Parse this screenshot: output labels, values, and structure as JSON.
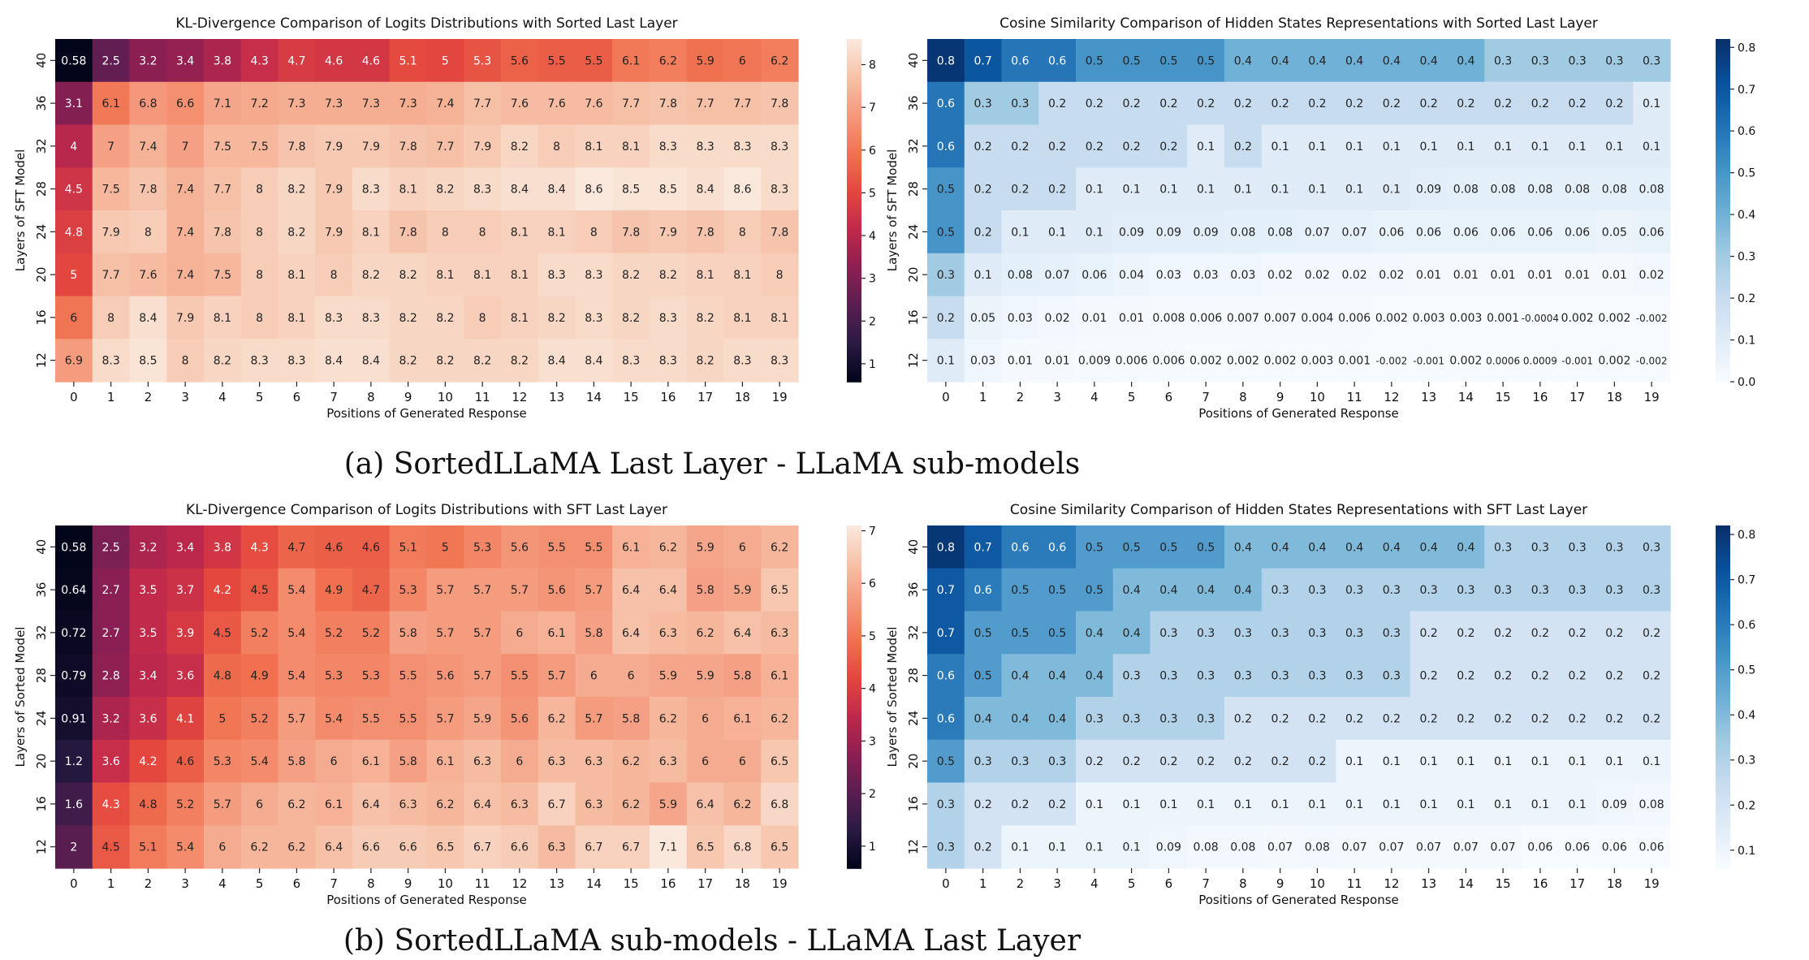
{
  "captions": [
    "(a) SortedLLaMA Last Layer - LLaMA sub-models",
    "(b) SortedLLaMA sub-models - LLaMA Last Layer"
  ],
  "chart_data": [
    {
      "type": "heatmap",
      "title": "KL-Divergence Comparison of Logits Distributions with Sorted Last Layer",
      "xlabel": "Positions of Generated Response",
      "ylabel": "Layers of SFT Model",
      "x": [
        0,
        1,
        2,
        3,
        4,
        5,
        6,
        7,
        8,
        9,
        10,
        11,
        12,
        13,
        14,
        15,
        16,
        17,
        18,
        19
      ],
      "y": [
        40,
        36,
        32,
        28,
        24,
        20,
        16,
        12
      ],
      "colormap": "rocket",
      "vmin": 0.58,
      "vmax": 8.6,
      "colorbar_ticks": [
        1,
        2,
        3,
        4,
        5,
        6,
        7,
        8
      ],
      "values": [
        [
          "0.58",
          "2.5",
          "3.2",
          "3.4",
          "3.8",
          "4.3",
          "4.7",
          "4.6",
          "4.6",
          "5.1",
          "5",
          "5.3",
          "5.6",
          "5.5",
          "5.5",
          "6.1",
          "6.2",
          "5.9",
          "6",
          "6.2"
        ],
        [
          "3.1",
          "6.1",
          "6.8",
          "6.6",
          "7.1",
          "7.2",
          "7.3",
          "7.3",
          "7.3",
          "7.3",
          "7.4",
          "7.7",
          "7.6",
          "7.6",
          "7.6",
          "7.7",
          "7.8",
          "7.7",
          "7.7",
          "7.8"
        ],
        [
          "4",
          "7",
          "7.4",
          "7",
          "7.5",
          "7.5",
          "7.8",
          "7.9",
          "7.9",
          "7.8",
          "7.7",
          "7.9",
          "8.2",
          "8",
          "8.1",
          "8.1",
          "8.3",
          "8.3",
          "8.3",
          "8.3"
        ],
        [
          "4.5",
          "7.5",
          "7.8",
          "7.4",
          "7.7",
          "8",
          "8.2",
          "7.9",
          "8.3",
          "8.1",
          "8.2",
          "8.3",
          "8.4",
          "8.4",
          "8.6",
          "8.5",
          "8.5",
          "8.4",
          "8.6",
          "8.3"
        ],
        [
          "4.8",
          "7.9",
          "8",
          "7.4",
          "7.8",
          "8",
          "8.2",
          "7.9",
          "8.1",
          "7.8",
          "8",
          "8",
          "8.1",
          "8.1",
          "8",
          "7.8",
          "7.9",
          "7.8",
          "8",
          "7.8"
        ],
        [
          "5",
          "7.7",
          "7.6",
          "7.4",
          "7.5",
          "8",
          "8.1",
          "8",
          "8.2",
          "8.2",
          "8.1",
          "8.1",
          "8.1",
          "8.3",
          "8.3",
          "8.2",
          "8.2",
          "8.1",
          "8.1",
          "8"
        ],
        [
          "6",
          "8",
          "8.4",
          "7.9",
          "8.1",
          "8",
          "8.1",
          "8.3",
          "8.3",
          "8.2",
          "8.2",
          "8",
          "8.1",
          "8.2",
          "8.3",
          "8.2",
          "8.3",
          "8.2",
          "8.1",
          "8.1"
        ],
        [
          "6.9",
          "8.3",
          "8.5",
          "8",
          "8.2",
          "8.3",
          "8.3",
          "8.4",
          "8.4",
          "8.2",
          "8.2",
          "8.2",
          "8.2",
          "8.4",
          "8.4",
          "8.3",
          "8.3",
          "8.2",
          "8.3",
          "8.3"
        ]
      ]
    },
    {
      "type": "heatmap",
      "title": "Cosine Similarity Comparison of Hidden States Representations with Sorted Last Layer",
      "xlabel": "Positions of Generated Response",
      "ylabel": "Layers of SFT Model",
      "x": [
        0,
        1,
        2,
        3,
        4,
        5,
        6,
        7,
        8,
        9,
        10,
        11,
        12,
        13,
        14,
        15,
        16,
        17,
        18,
        19
      ],
      "y": [
        40,
        36,
        32,
        28,
        24,
        20,
        16,
        12
      ],
      "colormap": "Blues",
      "vmin": 0.0,
      "vmax": 0.82,
      "colorbar_ticks": [
        "0.0",
        "0.1",
        "0.2",
        "0.3",
        "0.4",
        "0.5",
        "0.6",
        "0.7",
        "0.8"
      ],
      "values": [
        [
          "0.8",
          "0.7",
          "0.6",
          "0.6",
          "0.5",
          "0.5",
          "0.5",
          "0.5",
          "0.4",
          "0.4",
          "0.4",
          "0.4",
          "0.4",
          "0.4",
          "0.4",
          "0.3",
          "0.3",
          "0.3",
          "0.3",
          "0.3"
        ],
        [
          "0.6",
          "0.3",
          "0.3",
          "0.2",
          "0.2",
          "0.2",
          "0.2",
          "0.2",
          "0.2",
          "0.2",
          "0.2",
          "0.2",
          "0.2",
          "0.2",
          "0.2",
          "0.2",
          "0.2",
          "0.2",
          "0.2",
          "0.1"
        ],
        [
          "0.6",
          "0.2",
          "0.2",
          "0.2",
          "0.2",
          "0.2",
          "0.2",
          "0.1",
          "0.2",
          "0.1",
          "0.1",
          "0.1",
          "0.1",
          "0.1",
          "0.1",
          "0.1",
          "0.1",
          "0.1",
          "0.1",
          "0.1"
        ],
        [
          "0.5",
          "0.2",
          "0.2",
          "0.2",
          "0.1",
          "0.1",
          "0.1",
          "0.1",
          "0.1",
          "0.1",
          "0.1",
          "0.1",
          "0.1",
          "0.09",
          "0.08",
          "0.08",
          "0.08",
          "0.08",
          "0.08",
          "0.08"
        ],
        [
          "0.5",
          "0.2",
          "0.1",
          "0.1",
          "0.1",
          "0.09",
          "0.09",
          "0.09",
          "0.08",
          "0.08",
          "0.07",
          "0.07",
          "0.06",
          "0.06",
          "0.06",
          "0.06",
          "0.06",
          "0.06",
          "0.05",
          "0.06"
        ],
        [
          "0.3",
          "0.1",
          "0.08",
          "0.07",
          "0.06",
          "0.04",
          "0.03",
          "0.03",
          "0.03",
          "0.02",
          "0.02",
          "0.02",
          "0.02",
          "0.01",
          "0.01",
          "0.01",
          "0.01",
          "0.01",
          "0.01",
          "0.02"
        ],
        [
          "0.2",
          "0.05",
          "0.03",
          "0.02",
          "0.01",
          "0.01",
          "0.008",
          "0.006",
          "0.007",
          "0.007",
          "0.004",
          "0.006",
          "0.002",
          "0.003",
          "0.003",
          "0.001",
          "-0.0004",
          "0.002",
          "0.002",
          "-0.002"
        ],
        [
          "0.1",
          "0.03",
          "0.01",
          "0.01",
          "0.009",
          "0.006",
          "0.006",
          "0.002",
          "0.002",
          "0.002",
          "0.003",
          "0.001",
          "-0.002",
          "-0.001",
          "0.002",
          "0.0006",
          "0.0009",
          "-0.001",
          "0.002",
          "-0.002"
        ]
      ]
    },
    {
      "type": "heatmap",
      "title": "KL-Divergence Comparison of Logits Distributions with SFT Last Layer",
      "xlabel": "Positions of Generated Response",
      "ylabel": "Layers of Sorted Model",
      "x": [
        0,
        1,
        2,
        3,
        4,
        5,
        6,
        7,
        8,
        9,
        10,
        11,
        12,
        13,
        14,
        15,
        16,
        17,
        18,
        19
      ],
      "y": [
        40,
        36,
        32,
        28,
        24,
        20,
        16,
        12
      ],
      "colormap": "rocket",
      "vmin": 0.58,
      "vmax": 7.1,
      "colorbar_ticks": [
        1,
        2,
        3,
        4,
        5,
        6,
        7
      ],
      "values": [
        [
          "0.58",
          "2.5",
          "3.2",
          "3.4",
          "3.8",
          "4.3",
          "4.7",
          "4.6",
          "4.6",
          "5.1",
          "5",
          "5.3",
          "5.6",
          "5.5",
          "5.5",
          "6.1",
          "6.2",
          "5.9",
          "6",
          "6.2"
        ],
        [
          "0.64",
          "2.7",
          "3.5",
          "3.7",
          "4.2",
          "4.5",
          "5.4",
          "4.9",
          "4.7",
          "5.3",
          "5.7",
          "5.7",
          "5.7",
          "5.6",
          "5.7",
          "6.4",
          "6.4",
          "5.8",
          "5.9",
          "6.5"
        ],
        [
          "0.72",
          "2.7",
          "3.5",
          "3.9",
          "4.5",
          "5.2",
          "5.4",
          "5.2",
          "5.2",
          "5.8",
          "5.7",
          "5.7",
          "6",
          "6.1",
          "5.8",
          "6.4",
          "6.3",
          "6.2",
          "6.4",
          "6.3"
        ],
        [
          "0.79",
          "2.8",
          "3.4",
          "3.6",
          "4.8",
          "4.9",
          "5.4",
          "5.3",
          "5.3",
          "5.5",
          "5.6",
          "5.7",
          "5.5",
          "5.7",
          "6",
          "6",
          "5.9",
          "5.9",
          "5.8",
          "6.1"
        ],
        [
          "0.91",
          "3.2",
          "3.6",
          "4.1",
          "5",
          "5.2",
          "5.7",
          "5.4",
          "5.5",
          "5.5",
          "5.7",
          "5.9",
          "5.6",
          "6.2",
          "5.7",
          "5.8",
          "6.2",
          "6",
          "6.1",
          "6.2"
        ],
        [
          "1.2",
          "3.6",
          "4.2",
          "4.6",
          "5.3",
          "5.4",
          "5.8",
          "6",
          "6.1",
          "5.8",
          "6.1",
          "6.3",
          "6",
          "6.3",
          "6.3",
          "6.2",
          "6.3",
          "6",
          "6",
          "6.5"
        ],
        [
          "1.6",
          "4.3",
          "4.8",
          "5.2",
          "5.7",
          "6",
          "6.2",
          "6.1",
          "6.4",
          "6.3",
          "6.2",
          "6.4",
          "6.3",
          "6.7",
          "6.3",
          "6.2",
          "5.9",
          "6.4",
          "6.2",
          "6.8"
        ],
        [
          "2",
          "4.5",
          "5.1",
          "5.4",
          "6",
          "6.2",
          "6.2",
          "6.4",
          "6.6",
          "6.6",
          "6.5",
          "6.7",
          "6.6",
          "6.3",
          "6.7",
          "6.7",
          "7.1",
          "6.5",
          "6.8",
          "6.5"
        ]
      ]
    },
    {
      "type": "heatmap",
      "title": "Cosine Similarity Comparison of Hidden States Representations with SFT Last Layer",
      "xlabel": "Positions of Generated Response",
      "ylabel": "Layers of Sorted Model",
      "x": [
        0,
        1,
        2,
        3,
        4,
        5,
        6,
        7,
        8,
        9,
        10,
        11,
        12,
        13,
        14,
        15,
        16,
        17,
        18,
        19
      ],
      "y": [
        40,
        36,
        32,
        28,
        24,
        20,
        16,
        12
      ],
      "colormap": "Blues",
      "vmin": 0.06,
      "vmax": 0.82,
      "colorbar_ticks": [
        "0.1",
        "0.2",
        "0.3",
        "0.4",
        "0.5",
        "0.6",
        "0.7",
        "0.8"
      ],
      "values": [
        [
          "0.8",
          "0.7",
          "0.6",
          "0.6",
          "0.5",
          "0.5",
          "0.5",
          "0.5",
          "0.4",
          "0.4",
          "0.4",
          "0.4",
          "0.4",
          "0.4",
          "0.4",
          "0.3",
          "0.3",
          "0.3",
          "0.3",
          "0.3"
        ],
        [
          "0.7",
          "0.6",
          "0.5",
          "0.5",
          "0.5",
          "0.4",
          "0.4",
          "0.4",
          "0.4",
          "0.3",
          "0.3",
          "0.3",
          "0.3",
          "0.3",
          "0.3",
          "0.3",
          "0.3",
          "0.3",
          "0.3",
          "0.3"
        ],
        [
          "0.7",
          "0.5",
          "0.5",
          "0.5",
          "0.4",
          "0.4",
          "0.3",
          "0.3",
          "0.3",
          "0.3",
          "0.3",
          "0.3",
          "0.3",
          "0.2",
          "0.2",
          "0.2",
          "0.2",
          "0.2",
          "0.2",
          "0.2"
        ],
        [
          "0.6",
          "0.5",
          "0.4",
          "0.4",
          "0.4",
          "0.3",
          "0.3",
          "0.3",
          "0.3",
          "0.3",
          "0.3",
          "0.3",
          "0.3",
          "0.2",
          "0.2",
          "0.2",
          "0.2",
          "0.2",
          "0.2",
          "0.2"
        ],
        [
          "0.6",
          "0.4",
          "0.4",
          "0.4",
          "0.3",
          "0.3",
          "0.3",
          "0.3",
          "0.2",
          "0.2",
          "0.2",
          "0.2",
          "0.2",
          "0.2",
          "0.2",
          "0.2",
          "0.2",
          "0.2",
          "0.2",
          "0.2"
        ],
        [
          "0.5",
          "0.3",
          "0.3",
          "0.3",
          "0.2",
          "0.2",
          "0.2",
          "0.2",
          "0.2",
          "0.2",
          "0.2",
          "0.1",
          "0.1",
          "0.1",
          "0.1",
          "0.1",
          "0.1",
          "0.1",
          "0.1",
          "0.1"
        ],
        [
          "0.3",
          "0.2",
          "0.2",
          "0.2",
          "0.1",
          "0.1",
          "0.1",
          "0.1",
          "0.1",
          "0.1",
          "0.1",
          "0.1",
          "0.1",
          "0.1",
          "0.1",
          "0.1",
          "0.1",
          "0.1",
          "0.09",
          "0.08"
        ],
        [
          "0.3",
          "0.2",
          "0.1",
          "0.1",
          "0.1",
          "0.1",
          "0.09",
          "0.08",
          "0.08",
          "0.07",
          "0.08",
          "0.07",
          "0.07",
          "0.07",
          "0.07",
          "0.07",
          "0.06",
          "0.06",
          "0.06",
          "0.06"
        ]
      ]
    }
  ]
}
